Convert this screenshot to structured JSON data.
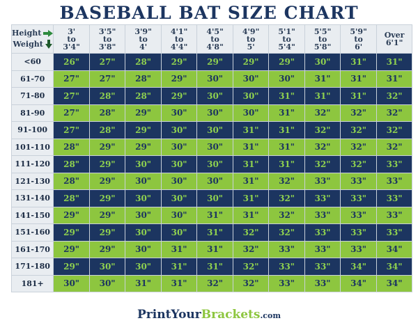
{
  "title": "BASEBALL BAT SIZE CHART",
  "corner": {
    "height_label": "Height",
    "weight_label": "Weight"
  },
  "columns": [
    [
      "3'",
      "to",
      "3'4\""
    ],
    [
      "3'5\"",
      "to",
      "3'8\""
    ],
    [
      "3'9\"",
      "to",
      "4'"
    ],
    [
      "4'1\"",
      "to",
      "4'4\""
    ],
    [
      "4'5\"",
      "to",
      "4'8\""
    ],
    [
      "4'9\"",
      "to",
      "5'"
    ],
    [
      "5'1\"",
      "to",
      "5'4\""
    ],
    [
      "5'5\"",
      "to",
      "5'8\""
    ],
    [
      "5'9\"",
      "to",
      "6'"
    ],
    [
      "Over",
      "6'1\""
    ]
  ],
  "rows": [
    {
      "weight": "<60",
      "sizes": [
        "26\"",
        "27\"",
        "28\"",
        "29\"",
        "29\"",
        "29\"",
        "29\"",
        "30\"",
        "31\"",
        "31\""
      ]
    },
    {
      "weight": "61-70",
      "sizes": [
        "27\"",
        "27\"",
        "28\"",
        "29\"",
        "30\"",
        "30\"",
        "30\"",
        "31\"",
        "31\"",
        "31\""
      ]
    },
    {
      "weight": "71-80",
      "sizes": [
        "27\"",
        "28\"",
        "28\"",
        "29\"",
        "30\"",
        "30\"",
        "31\"",
        "31\"",
        "31\"",
        "32\""
      ]
    },
    {
      "weight": "81-90",
      "sizes": [
        "27\"",
        "28\"",
        "29\"",
        "30\"",
        "30\"",
        "30\"",
        "31\"",
        "32\"",
        "32\"",
        "32\""
      ]
    },
    {
      "weight": "91-100",
      "sizes": [
        "27\"",
        "28\"",
        "29\"",
        "30\"",
        "30\"",
        "31\"",
        "31\"",
        "32\"",
        "32\"",
        "32\""
      ]
    },
    {
      "weight": "101-110",
      "sizes": [
        "28\"",
        "29\"",
        "29\"",
        "30\"",
        "30\"",
        "31\"",
        "31\"",
        "32\"",
        "32\"",
        "32\""
      ]
    },
    {
      "weight": "111-120",
      "sizes": [
        "28\"",
        "29\"",
        "30\"",
        "30\"",
        "30\"",
        "31\"",
        "31\"",
        "32\"",
        "32\"",
        "33\""
      ]
    },
    {
      "weight": "121-130",
      "sizes": [
        "28\"",
        "29\"",
        "30\"",
        "30\"",
        "30\"",
        "31\"",
        "32\"",
        "33\"",
        "33\"",
        "33\""
      ]
    },
    {
      "weight": "131-140",
      "sizes": [
        "28\"",
        "29\"",
        "30\"",
        "30\"",
        "30\"",
        "31\"",
        "32\"",
        "33\"",
        "33\"",
        "33\""
      ]
    },
    {
      "weight": "141-150",
      "sizes": [
        "29\"",
        "29\"",
        "30\"",
        "30\"",
        "31\"",
        "31\"",
        "32\"",
        "33\"",
        "33\"",
        "33\""
      ]
    },
    {
      "weight": "151-160",
      "sizes": [
        "29\"",
        "29\"",
        "30\"",
        "30\"",
        "31\"",
        "32\"",
        "32\"",
        "33\"",
        "33\"",
        "33\""
      ]
    },
    {
      "weight": "161-170",
      "sizes": [
        "29\"",
        "29\"",
        "30\"",
        "31\"",
        "31\"",
        "32\"",
        "33\"",
        "33\"",
        "33\"",
        "34\""
      ]
    },
    {
      "weight": "171-180",
      "sizes": [
        "29\"",
        "30\"",
        "30\"",
        "31\"",
        "31\"",
        "32\"",
        "33\"",
        "33\"",
        "34\"",
        "34\""
      ]
    },
    {
      "weight": "181+",
      "sizes": [
        "30\"",
        "30\"",
        "31\"",
        "31\"",
        "32\"",
        "32\"",
        "33\"",
        "33\"",
        "34\"",
        "34\""
      ]
    }
  ],
  "colors": {
    "navy": "#1c3560",
    "green": "#8dc63f",
    "header_bg": "#e9edf1"
  },
  "footer": {
    "part1": "PrintYour",
    "part2": "Brackets",
    "part3": ".com"
  }
}
